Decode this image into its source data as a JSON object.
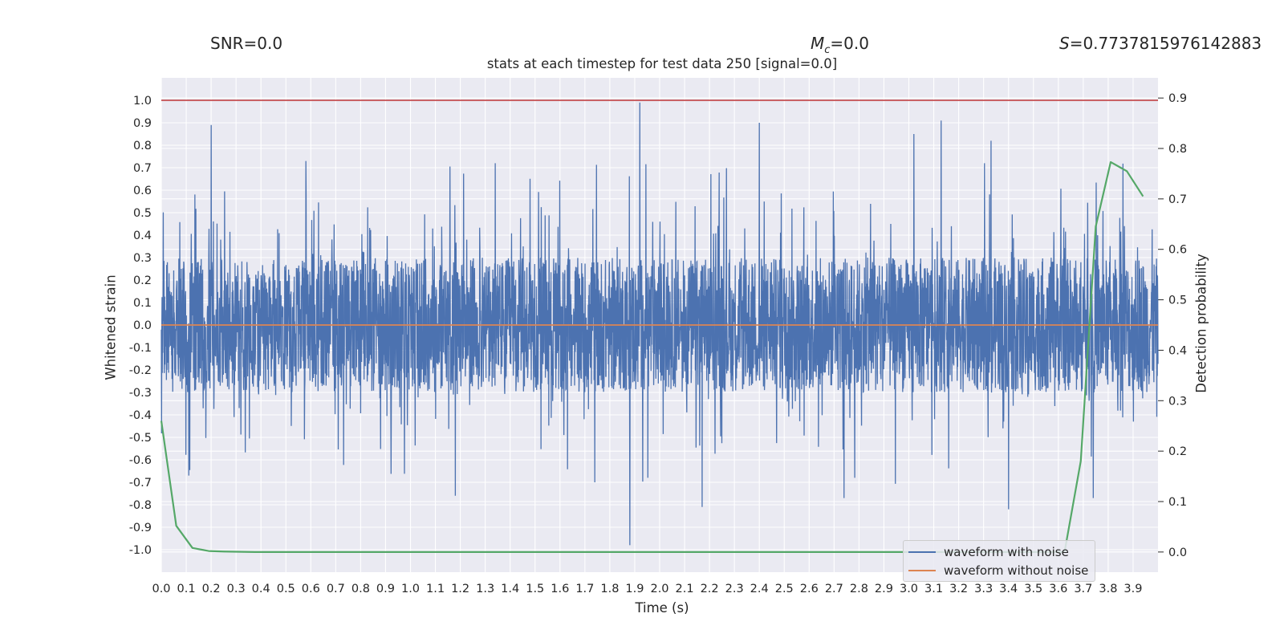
{
  "header": {
    "snr_text": "SNR=0.0",
    "mc_symbol": "M",
    "mc_sub": "c",
    "mc_value": "=0.0",
    "s_symbol": "S",
    "s_value": "=0.7737815976142883"
  },
  "chart_data": {
    "type": "line",
    "title": "stats at each timestep for test data 250 [signal=0.0]",
    "xlabel": "Time (s)",
    "ylabel": "Whitened strain",
    "y2label": "Detection probability",
    "xlim": [
      0.0,
      4.0
    ],
    "ylim": [
      -1.1,
      1.1
    ],
    "y2lim": [
      -0.04,
      0.94
    ],
    "grid": true,
    "x_ticks": [
      "0.0",
      "0.1",
      "0.2",
      "0.3",
      "0.4",
      "0.5",
      "0.6",
      "0.7",
      "0.8",
      "0.9",
      "1.0",
      "1.1",
      "1.2",
      "1.3",
      "1.4",
      "1.5",
      "1.6",
      "1.7",
      "1.8",
      "1.9",
      "2.0",
      "2.1",
      "2.2",
      "2.3",
      "2.4",
      "2.5",
      "2.6",
      "2.7",
      "2.8",
      "2.9",
      "3.0",
      "3.1",
      "3.2",
      "3.3",
      "3.4",
      "3.5",
      "3.6",
      "3.7",
      "3.8",
      "3.9"
    ],
    "y_ticks": [
      "1.0",
      "0.9",
      "0.8",
      "0.7",
      "0.6",
      "0.5",
      "0.4",
      "0.3",
      "0.2",
      "0.1",
      "0.0",
      "-0.1",
      "-0.2",
      "-0.3",
      "-0.4",
      "-0.5",
      "-0.6",
      "-0.7",
      "-0.8",
      "-0.9",
      "-1.0"
    ],
    "y2_ticks": [
      "0.9",
      "0.8",
      "0.7",
      "0.6",
      "0.5",
      "0.4",
      "0.3",
      "0.2",
      "0.1",
      "0.0"
    ],
    "threshold": {
      "y": 1.0,
      "color": "#c44e52"
    },
    "legend": {
      "position": "lower-right",
      "entries": [
        "waveform with noise",
        "waveform without noise"
      ]
    },
    "series": [
      {
        "name": "waveform with noise",
        "axis": "left",
        "color": "#4c72b0",
        "sample_count": 4096,
        "noise_core": 0.3,
        "noise_spread": 0.16,
        "peaks": [
          {
            "x": 0.2,
            "y": 0.89
          },
          {
            "x": 1.92,
            "y": 0.99
          },
          {
            "x": 2.4,
            "y": 0.9
          },
          {
            "x": 3.13,
            "y": 0.91
          },
          {
            "x": 3.02,
            "y": 0.85
          },
          {
            "x": 3.33,
            "y": 0.82
          },
          {
            "x": 0.58,
            "y": 0.73
          },
          {
            "x": 1.34,
            "y": 0.72
          },
          {
            "x": 1.88,
            "y": -0.98
          },
          {
            "x": 1.18,
            "y": -0.76
          },
          {
            "x": 2.17,
            "y": -0.81
          },
          {
            "x": 3.4,
            "y": -0.82
          },
          {
            "x": 2.74,
            "y": -0.77
          },
          {
            "x": 3.74,
            "y": -0.77
          },
          {
            "x": 1.74,
            "y": -0.7
          },
          {
            "x": 0.11,
            "y": -0.67
          }
        ]
      },
      {
        "name": "waveform without noise",
        "axis": "left",
        "color": "#dd8452",
        "x": [
          0.0,
          4.0
        ],
        "y": [
          0.0,
          0.0
        ]
      },
      {
        "name": "detection probability",
        "axis": "right",
        "color": "#55a868",
        "x": [
          0.0,
          0.06,
          0.125,
          0.19,
          0.25,
          0.375,
          0.5,
          1.0,
          2.0,
          3.0,
          3.5,
          3.625,
          3.69,
          3.75,
          3.81,
          3.875,
          3.94
        ],
        "y": [
          0.26,
          0.052,
          0.008,
          0.002,
          0.001,
          0.0,
          0.0,
          0.0,
          0.0,
          0.0,
          0.0,
          0.0,
          0.18,
          0.645,
          0.773,
          0.755,
          0.705
        ]
      }
    ]
  }
}
